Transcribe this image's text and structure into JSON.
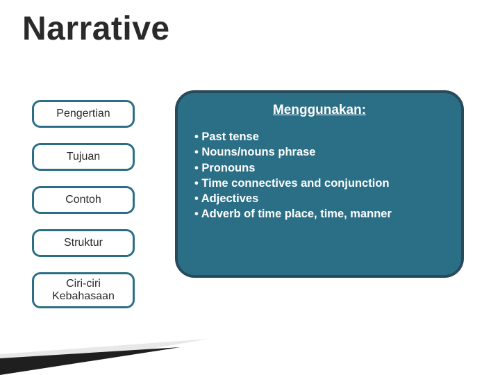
{
  "title": "Narrative",
  "nav": {
    "items": [
      {
        "label": "Pengertian",
        "tall": false
      },
      {
        "label": "Tujuan",
        "tall": false
      },
      {
        "label": "Contoh",
        "tall": false
      },
      {
        "label": "Struktur",
        "tall": false
      },
      {
        "label": "Ciri-ciri\nKebahasaan",
        "tall": true
      }
    ],
    "border_color": "#2b6f87",
    "text_color": "#2a2a2a"
  },
  "panel": {
    "title": "Menggunakan:",
    "items": [
      " Past tense",
      "Nouns/nouns phrase",
      "Pronouns",
      "Time connectives and conjunction",
      "Adjectives",
      "Adverb of time place, time, manner"
    ],
    "bg_color": "#2b6f87",
    "border_color": "#284a5a",
    "text_color": "#ffffff"
  },
  "wedge": {
    "fill_light": "#e8e8e8",
    "fill_dark": "#1f1f1f"
  }
}
